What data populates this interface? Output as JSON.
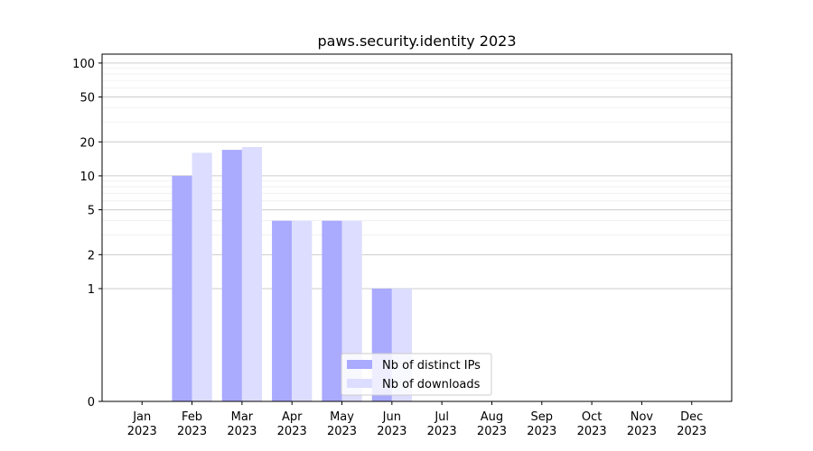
{
  "chart_data": {
    "type": "bar",
    "title": "paws.security.identity 2023",
    "xlabel": "",
    "ylabel": "",
    "yscale": "symlog",
    "ylim": [
      0,
      120
    ],
    "grid": "y",
    "legend_position": "lower center",
    "categories": [
      {
        "month": "Jan",
        "year": "2023"
      },
      {
        "month": "Feb",
        "year": "2023"
      },
      {
        "month": "Mar",
        "year": "2023"
      },
      {
        "month": "Apr",
        "year": "2023"
      },
      {
        "month": "May",
        "year": "2023"
      },
      {
        "month": "Jun",
        "year": "2023"
      },
      {
        "month": "Jul",
        "year": "2023"
      },
      {
        "month": "Aug",
        "year": "2023"
      },
      {
        "month": "Sep",
        "year": "2023"
      },
      {
        "month": "Oct",
        "year": "2023"
      },
      {
        "month": "Nov",
        "year": "2023"
      },
      {
        "month": "Dec",
        "year": "2023"
      }
    ],
    "y_ticks": [
      "0",
      "1",
      "2",
      "5",
      "10",
      "20",
      "50",
      "100"
    ],
    "series": [
      {
        "name": "Nb of distinct IPs",
        "color": "#aaaaff",
        "values": [
          0,
          10,
          17,
          4,
          4,
          1,
          0,
          0,
          0,
          0,
          0,
          0
        ]
      },
      {
        "name": "Nb of downloads",
        "color": "#ddddff",
        "values": [
          0,
          16,
          18,
          4,
          4,
          1,
          0,
          0,
          0,
          0,
          0,
          0
        ]
      }
    ]
  }
}
